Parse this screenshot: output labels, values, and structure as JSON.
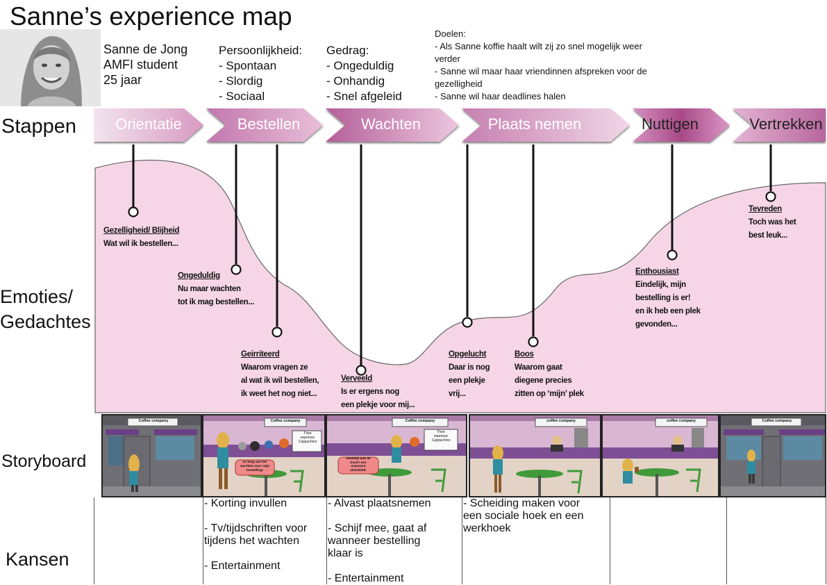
{
  "title": "Sanne’s experience map",
  "persona": {
    "lines": [
      "Sanne de Jong",
      "AMFI student",
      "25 jaar"
    ]
  },
  "personality": {
    "heading": "Persoonlijkheid:",
    "items": [
      "- Spontaan",
      "- Slordig",
      "- Sociaal"
    ]
  },
  "behavior": {
    "heading": "Gedrag:",
    "items": [
      "- Ongeduldig",
      "- Onhandig",
      "- Snel afgeleid"
    ]
  },
  "goals": {
    "heading": "Doelen:",
    "lines": [
      "- Als Sanne koffie haalt wilt zij zo snel mogelijk weer",
      "verder",
      "- Sanne wil maar haar vriendinnen afspreken voor de",
      "gezelligheid",
      "- Sanne wil haar deadlines halen"
    ]
  },
  "row_labels": {
    "stappen": "Stappen",
    "emoties_1": "Emoties/",
    "emoties_2": "Gedachtes",
    "storyboard": "Storyboard",
    "kansen": "Kansen"
  },
  "steps": [
    "Orientatie",
    "Bestellen",
    "Wachten",
    "Plaats nemen",
    "Nuttigen",
    "Vertrekken"
  ],
  "emotions": [
    {
      "heading": "Gezelligheid/ Blijheid",
      "lines": [
        "Wat wil ik bestellen..."
      ]
    },
    {
      "heading": "Ongeduldig",
      "lines": [
        "Nu maar wachten",
        "tot ik mag bestellen..."
      ]
    },
    {
      "heading": "Geirriteerd",
      "lines": [
        "Waarom vragen ze",
        "al wat ik wil bestellen,",
        "ik weet het nog niet..."
      ]
    },
    {
      "heading": "Verveeld",
      "lines": [
        "Is er ergens nog",
        "een plekje voor mij..."
      ]
    },
    {
      "heading": "Opgelucht",
      "lines": [
        "Daar is nog",
        "een plekje",
        "vrij..."
      ]
    },
    {
      "heading": "Boos",
      "lines": [
        "Waarom gaat",
        "diegene precies",
        "zitten op ‘mijn’ plek"
      ]
    },
    {
      "heading": "Enthousiast",
      "lines": [
        "Eindelijk, mijn",
        "bestelling is er!",
        "en ik heb een plek",
        "gevonden..."
      ]
    },
    {
      "heading": "Tevreden",
      "lines": [
        "Toch was het",
        "best leuk..."
      ]
    }
  ],
  "storyboard": {
    "sign": "Coffee company",
    "sign_lower": "coffee company",
    "menu": [
      "Thee",
      "espresso",
      "Cappuchino"
    ],
    "bubble_1": [
      "zo lang aan het",
      "wachten voor mijn",
      "bestelling!"
    ],
    "bubble_2": [
      "eindelijk aan de",
      "beurt! een",
      "espresso",
      "alstublieft."
    ]
  },
  "kansen": [
    {
      "text": ""
    },
    {
      "text": "- Korting invullen\n\n- Tv/tijdschriften voor\ntijdens het wachten\n\n- Entertainment"
    },
    {
      "text": "- Alvast plaatsnemen\n\n- Schijf mee, gaat af\nwanneer bestelling\nklaar is\n\n- Entertainment"
    },
    {
      "text": "- Scheiding maken voor\neen sociale hoek en een\nwerkhoek"
    },
    {
      "text": ""
    },
    {
      "text": ""
    }
  ],
  "colors": {
    "curve_fill": "#f6d6e6",
    "step_light": "#f3dbe9",
    "step_mid": "#c77fb0",
    "step_dark": "#a84f8e",
    "wall": "#d9b3d4",
    "purple_band": "#7e4f94",
    "table_green": "#3f9a3a"
  }
}
